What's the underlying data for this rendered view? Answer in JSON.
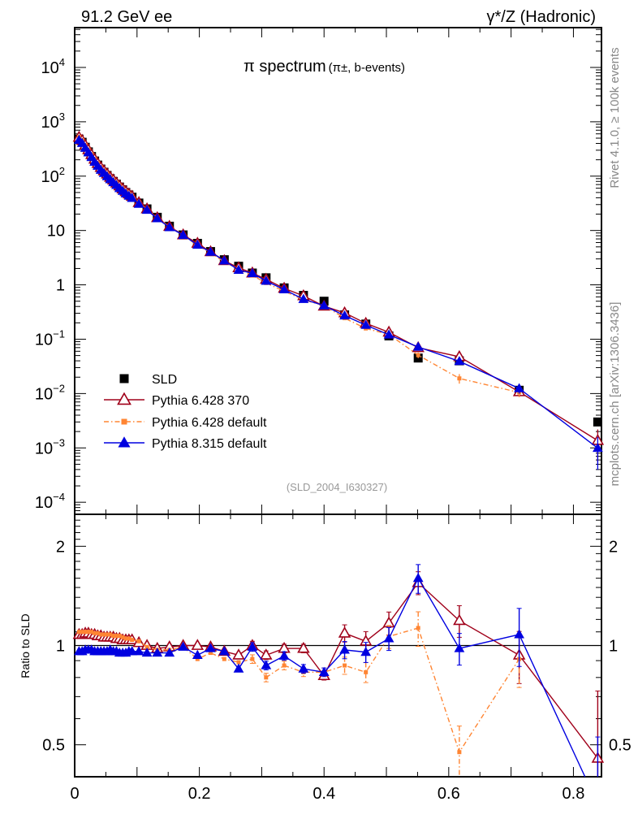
{
  "header": {
    "left": "91.2 GeV ee",
    "right": "γ*/Z (Hadronic)"
  },
  "side": {
    "rivet": "Rivet 4.1.0, ≥ 100k events",
    "mcplots": "mcplots.cern.ch [arXiv:1306.3436]"
  },
  "analysis_id": "(SLD_2004_I630327)",
  "colors": {
    "SLD": "#000000",
    "p6_370": "#a0001a",
    "p6_default": "#ff8533",
    "p8_default": "#0000e0"
  },
  "chart_data": {
    "type": "line",
    "title": "π spectrum",
    "title_sub": "(π±, b-events)",
    "xlabel": "",
    "ylabel_ratio": "Ratio to SLD",
    "xlim": [
      0,
      0.845
    ],
    "ylim": [
      6e-05,
      54000
    ],
    "ratio_ylim": [
      0.4,
      2.5
    ],
    "yscale": "log",
    "x_ticks": [
      "0",
      "0.2",
      "0.4",
      "0.6",
      "0.8"
    ],
    "y_ticks": [
      {
        "v": 10000,
        "base": "10",
        "exp": "4"
      },
      {
        "v": 1000,
        "base": "10",
        "exp": "3"
      },
      {
        "v": 100,
        "base": "10",
        "exp": "2"
      },
      {
        "v": 10,
        "base": "10",
        "exp": ""
      },
      {
        "v": 1,
        "base": "1",
        "exp": ""
      },
      {
        "v": 0.1,
        "base": "10",
        "exp": "−1"
      },
      {
        "v": 0.01,
        "base": "10",
        "exp": "−2"
      },
      {
        "v": 0.001,
        "base": "10",
        "exp": "−3"
      },
      {
        "v": 0.0001,
        "base": "10",
        "exp": "−4"
      }
    ],
    "ratio_ticks": [
      "2",
      "1",
      "0.5"
    ],
    "legend": {
      "placement": "bottom-left",
      "entries": [
        "SLD",
        "Pythia 6.428 370",
        "Pythia 6.428 default",
        "Pythia 8.315 default"
      ]
    },
    "x": [
      0.007,
      0.012,
      0.017,
      0.022,
      0.027,
      0.032,
      0.037,
      0.042,
      0.047,
      0.052,
      0.057,
      0.062,
      0.067,
      0.072,
      0.077,
      0.082,
      0.087,
      0.092,
      0.103,
      0.116,
      0.1325,
      0.152,
      0.174,
      0.197,
      0.218,
      0.24,
      0.263,
      0.285,
      0.307,
      0.336,
      0.367,
      0.4,
      0.433,
      0.467,
      0.504,
      0.551,
      0.617,
      0.713,
      0.839
    ],
    "sld": [
      480,
      420,
      340,
      280,
      230,
      190,
      160,
      135,
      118,
      103,
      90,
      80,
      71,
      63,
      56,
      50,
      45,
      41,
      32,
      25,
      17.5,
      12,
      8.3,
      5.8,
      4.1,
      2.9,
      2.2,
      1.65,
      1.35,
      0.88,
      0.64,
      0.5,
      0.28,
      0.19,
      0.115,
      0.045,
      0.04,
      0.0115,
      0.003
    ],
    "series": [
      {
        "name": "Pythia 6.428 370",
        "key": "p6_370",
        "ratio": [
          1.08,
          1.08,
          1.09,
          1.09,
          1.08,
          1.08,
          1.07,
          1.07,
          1.06,
          1.06,
          1.06,
          1.06,
          1.05,
          1.05,
          1.04,
          1.04,
          1.04,
          1.04,
          1.02,
          1.0,
          0.98,
          0.99,
          1.0,
          1.0,
          0.99,
          0.96,
          0.935,
          1.0,
          0.935,
          0.98,
          0.98,
          0.81,
          1.09,
          1.03,
          1.17,
          1.55,
          1.19,
          0.935,
          0.455
        ],
        "rel_err": [
          0.01,
          0.01,
          0.01,
          0.01,
          0.01,
          0.01,
          0.01,
          0.01,
          0.01,
          0.01,
          0.01,
          0.01,
          0.01,
          0.01,
          0.01,
          0.01,
          0.01,
          0.01,
          0.01,
          0.01,
          0.01,
          0.01,
          0.015,
          0.015,
          0.015,
          0.02,
          0.02,
          0.03,
          0.03,
          0.03,
          0.03,
          0.03,
          0.06,
          0.07,
          0.08,
          0.08,
          0.11,
          0.18,
          0.6
        ]
      },
      {
        "name": "Pythia 6.428 default",
        "key": "p6_default",
        "ratio": [
          1.1,
          1.1,
          1.1,
          1.1,
          1.1,
          1.09,
          1.09,
          1.08,
          1.08,
          1.08,
          1.08,
          1.07,
          1.07,
          1.07,
          1.06,
          1.05,
          1.05,
          1.04,
          1.03,
          0.99,
          0.97,
          0.97,
          0.99,
          0.91,
          0.95,
          0.91,
          0.89,
          0.91,
          0.8,
          0.87,
          0.83,
          0.83,
          0.87,
          0.83,
          1.065,
          1.13,
          0.475,
          0.91,
          null
        ],
        "rel_err": [
          0.01,
          0.01,
          0.01,
          0.01,
          0.01,
          0.01,
          0.01,
          0.01,
          0.01,
          0.01,
          0.01,
          0.01,
          0.01,
          0.01,
          0.01,
          0.01,
          0.01,
          0.01,
          0.01,
          0.01,
          0.01,
          0.01,
          0.015,
          0.015,
          0.015,
          0.02,
          0.02,
          0.03,
          0.03,
          0.03,
          0.03,
          0.03,
          0.06,
          0.07,
          0.08,
          0.12,
          0.2,
          0.18,
          0
        ]
      },
      {
        "name": "Pythia 8.315 default",
        "key": "p8_default",
        "ratio": [
          0.96,
          0.96,
          0.97,
          0.97,
          0.97,
          0.96,
          0.96,
          0.96,
          0.96,
          0.96,
          0.97,
          0.96,
          0.96,
          0.95,
          0.95,
          0.95,
          0.96,
          0.96,
          0.96,
          0.95,
          0.95,
          0.95,
          0.99,
          0.935,
          0.98,
          0.96,
          0.85,
          0.99,
          0.87,
          0.93,
          0.85,
          0.83,
          0.97,
          0.955,
          1.05,
          1.6,
          0.98,
          1.08,
          0.33
        ],
        "rel_err": [
          0.01,
          0.01,
          0.01,
          0.01,
          0.01,
          0.01,
          0.01,
          0.01,
          0.01,
          0.01,
          0.01,
          0.01,
          0.01,
          0.01,
          0.01,
          0.01,
          0.01,
          0.01,
          0.01,
          0.01,
          0.01,
          0.01,
          0.015,
          0.015,
          0.015,
          0.02,
          0.02,
          0.03,
          0.03,
          0.03,
          0.03,
          0.03,
          0.06,
          0.07,
          0.08,
          0.1,
          0.11,
          0.2,
          0.6
        ]
      }
    ]
  }
}
